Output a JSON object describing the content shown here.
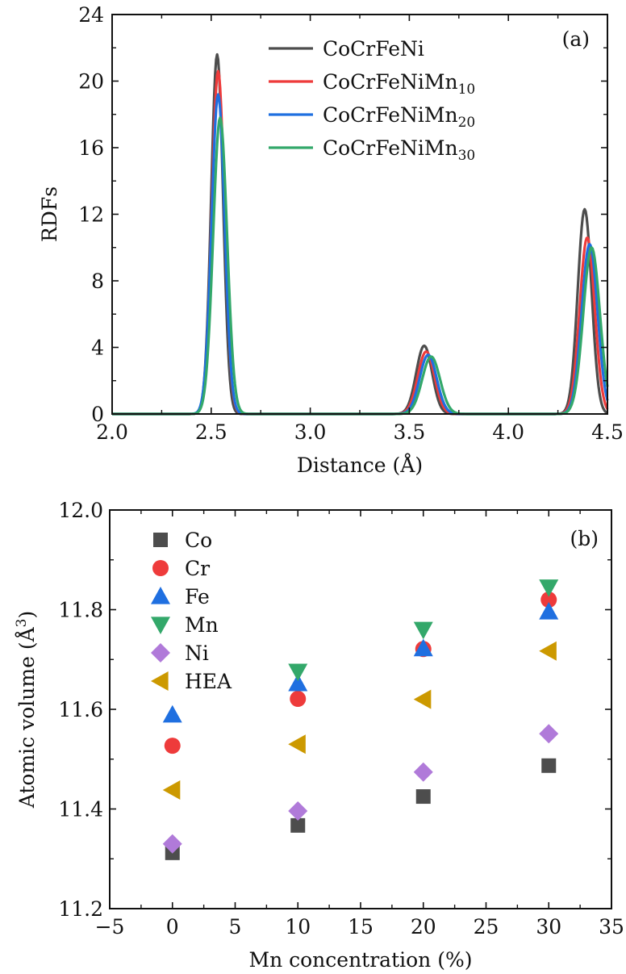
{
  "chart_data": [
    {
      "type": "line",
      "panel_label": "(a)",
      "title": "",
      "xlabel": "Distance (Å)",
      "ylabel": "RDFs",
      "xlim": [
        2.0,
        4.5
      ],
      "ylim": [
        0,
        24
      ],
      "xticks": [
        2.0,
        2.5,
        3.0,
        3.5,
        4.0,
        4.5
      ],
      "xtick_labels": [
        "2.0",
        "2.5",
        "3.0",
        "3.5",
        "4.0",
        "4.5"
      ],
      "yticks": [
        0,
        4,
        8,
        12,
        16,
        20,
        24
      ],
      "ytick_labels": [
        "0",
        "4",
        "8",
        "12",
        "16",
        "20",
        "24"
      ],
      "grid": false,
      "legend_position": "top-right",
      "series": [
        {
          "name": "CoCrFeNi",
          "name_base": "CoCrFeNi",
          "name_sub": "",
          "color": "#4d4d4d",
          "peaks": [
            {
              "center": 2.53,
              "height": 21.6,
              "width": 0.03
            },
            {
              "center": 3.575,
              "height": 4.1,
              "width": 0.04
            },
            {
              "center": 4.385,
              "height": 12.3,
              "width": 0.035
            }
          ]
        },
        {
          "name": "CoCrFeNiMn10",
          "name_base": "CoCrFeNiMn",
          "name_sub": "10",
          "color": "#ee3b3b",
          "peaks": [
            {
              "center": 2.535,
              "height": 20.6,
              "width": 0.032
            },
            {
              "center": 3.585,
              "height": 3.75,
              "width": 0.042
            },
            {
              "center": 4.398,
              "height": 10.6,
              "width": 0.038
            }
          ]
        },
        {
          "name": "CoCrFeNiMn20",
          "name_base": "CoCrFeNiMn",
          "name_sub": "20",
          "color": "#1f6fe0",
          "peaks": [
            {
              "center": 2.535,
              "height": 19.2,
              "width": 0.033
            },
            {
              "center": 3.595,
              "height": 3.55,
              "width": 0.043
            },
            {
              "center": 4.41,
              "height": 10.2,
              "width": 0.04
            }
          ]
        },
        {
          "name": "CoCrFeNiMn30",
          "name_base": "CoCrFeNiMn",
          "name_sub": "30",
          "color": "#33a86a",
          "peaks": [
            {
              "center": 2.545,
              "height": 17.8,
              "width": 0.035
            },
            {
              "center": 3.61,
              "height": 3.45,
              "width": 0.045
            },
            {
              "center": 4.42,
              "height": 10.0,
              "width": 0.042
            }
          ]
        }
      ]
    },
    {
      "type": "scatter",
      "panel_label": "(b)",
      "title": "",
      "xlabel": "Mn concentration (%)",
      "ylabel": "Atomic volume (Å3)",
      "ylabel_base": "Atomic volume (Å",
      "ylabel_sup": "3",
      "ylabel_close": ")",
      "xlim": [
        -5,
        35
      ],
      "ylim": [
        11.2,
        12.0
      ],
      "xticks": [
        -5,
        0,
        5,
        10,
        15,
        20,
        25,
        30,
        35
      ],
      "xtick_labels": [
        "−5",
        "0",
        "5",
        "10",
        "15",
        "20",
        "25",
        "30",
        "35"
      ],
      "yticks": [
        11.2,
        11.4,
        11.6,
        11.8,
        12.0
      ],
      "ytick_labels": [
        "11.2",
        "11.4",
        "11.6",
        "11.8",
        "12.0"
      ],
      "grid": false,
      "legend_position": "top-left",
      "x": [
        0,
        10,
        20,
        30
      ],
      "series": [
        {
          "name": "Co",
          "marker": "square",
          "color": "#4d4d4d",
          "values": [
            11.312,
            11.367,
            11.425,
            11.487
          ]
        },
        {
          "name": "Cr",
          "marker": "circle",
          "color": "#ee3b3b",
          "values": [
            11.527,
            11.621,
            11.721,
            11.82
          ]
        },
        {
          "name": "Fe",
          "marker": "triangle-up",
          "color": "#1f6fe0",
          "values": [
            11.589,
            11.652,
            11.722,
            11.796
          ]
        },
        {
          "name": "Mn",
          "marker": "triangle-down",
          "color": "#33a86a",
          "values": [
            null,
            11.676,
            11.76,
            11.845
          ]
        },
        {
          "name": "Ni",
          "marker": "diamond",
          "color": "#b07ad9",
          "values": [
            11.33,
            11.396,
            11.474,
            11.551
          ]
        },
        {
          "name": "HEA",
          "marker": "triangle-left",
          "color": "#cc9900",
          "values": [
            11.438,
            11.53,
            11.62,
            11.717
          ]
        }
      ]
    }
  ]
}
